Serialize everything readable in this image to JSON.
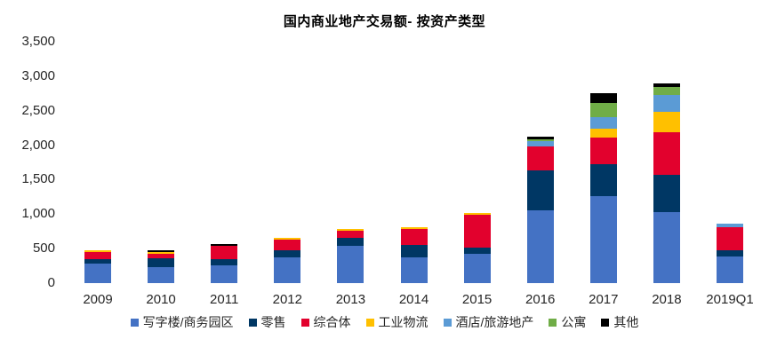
{
  "chart_data": {
    "type": "bar",
    "stacked": true,
    "title": "国内商业地产交易额- 按资产类型",
    "xlabel": "",
    "ylabel": "",
    "categories": [
      "2009",
      "2010",
      "2011",
      "2012",
      "2013",
      "2014",
      "2015",
      "2016",
      "2017",
      "2018",
      "2019Q1"
    ],
    "series": [
      {
        "name": "写字楼/商务园区",
        "color": "#4472C4",
        "values": [
          285,
          230,
          255,
          375,
          540,
          375,
          425,
          1055,
          1260,
          1030,
          385
        ]
      },
      {
        "name": "零售",
        "color": "#003764",
        "values": [
          65,
          130,
          90,
          105,
          115,
          180,
          90,
          580,
          465,
          540,
          90
        ]
      },
      {
        "name": "综合体",
        "color": "#E2012D",
        "values": [
          100,
          65,
          195,
          150,
          110,
          230,
          475,
          345,
          385,
          615,
          335
        ]
      },
      {
        "name": "工业物流",
        "color": "#FFC000",
        "values": [
          25,
          25,
          0,
          25,
          25,
          25,
          25,
          0,
          130,
          295,
          0
        ]
      },
      {
        "name": "酒店/旅游地产",
        "color": "#5B9BD5",
        "values": [
          0,
          0,
          0,
          0,
          0,
          0,
          0,
          75,
          165,
          245,
          50
        ]
      },
      {
        "name": "公寓",
        "color": "#70AD47",
        "values": [
          0,
          0,
          0,
          0,
          0,
          0,
          0,
          25,
          205,
          115,
          0
        ]
      },
      {
        "name": "其他",
        "color": "#000000",
        "values": [
          0,
          25,
          25,
          0,
          0,
          0,
          0,
          40,
          140,
          50,
          0
        ]
      }
    ],
    "totals": [
      475,
      475,
      565,
      655,
      790,
      810,
      1015,
      2120,
      2750,
      2890,
      860
    ],
    "ylim": [
      0,
      3500
    ],
    "y_tick_labels": [
      "0",
      "500",
      "1,000",
      "1,500",
      "2,000",
      "2,500",
      "3,000",
      "3,500"
    ],
    "y_tick_step": 500,
    "legend_position": "bottom",
    "grid": false,
    "background": "#ffffff"
  }
}
